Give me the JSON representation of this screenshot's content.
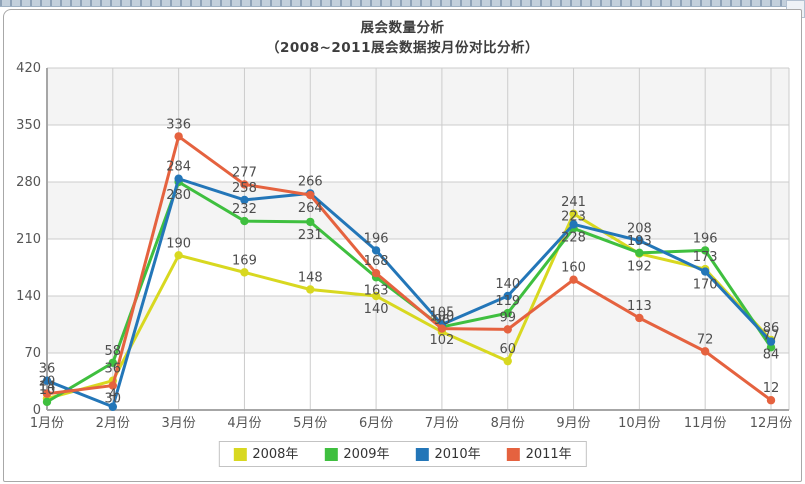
{
  "title": "展会数量分析",
  "subtitle": "（2008~2011展会数据按月份对比分析）",
  "chart_data": {
    "type": "line",
    "categories": [
      "1月份",
      "2月份",
      "3月份",
      "4月份",
      "5月份",
      "6月份",
      "7月份",
      "8月份",
      "9月份",
      "10月份",
      "11月份",
      "12月份"
    ],
    "series": [
      {
        "name": "2008年",
        "color": "#d8d820",
        "values": [
          14,
          36,
          190,
          169,
          148,
          140,
          96,
          60,
          241,
          192,
          173,
          86
        ]
      },
      {
        "name": "2009年",
        "color": "#3fbf3f",
        "values": [
          10,
          58,
          280,
          232,
          231,
          163,
          102,
          119,
          223,
          193,
          196,
          77
        ]
      },
      {
        "name": "2010年",
        "color": "#2376b8",
        "values": [
          36,
          4,
          284,
          258,
          266,
          196,
          105,
          140,
          228,
          208,
          170,
          84
        ]
      },
      {
        "name": "2011年",
        "color": "#e5623f",
        "values": [
          20,
          30,
          336,
          277,
          264,
          168,
          100,
          99,
          160,
          113,
          72,
          12
        ]
      }
    ],
    "title": "展会数量分析",
    "subtitle": "（2008~2011展会数据按月份对比分析）",
    "xlabel": "",
    "ylabel": "",
    "ylim": [
      0,
      420
    ],
    "yticks": [
      0,
      70,
      140,
      210,
      280,
      350,
      420
    ],
    "grid": true,
    "bands": "alternating-horizontal",
    "legend_position": "bottom",
    "show_point_labels": true,
    "colors": {
      "band_fill": "#f4f4f4",
      "grid_line": "#cccccc",
      "axis_line": "#a6a6a6",
      "tick_text": "#555555",
      "point_label_text": "#4d4d4d"
    }
  }
}
